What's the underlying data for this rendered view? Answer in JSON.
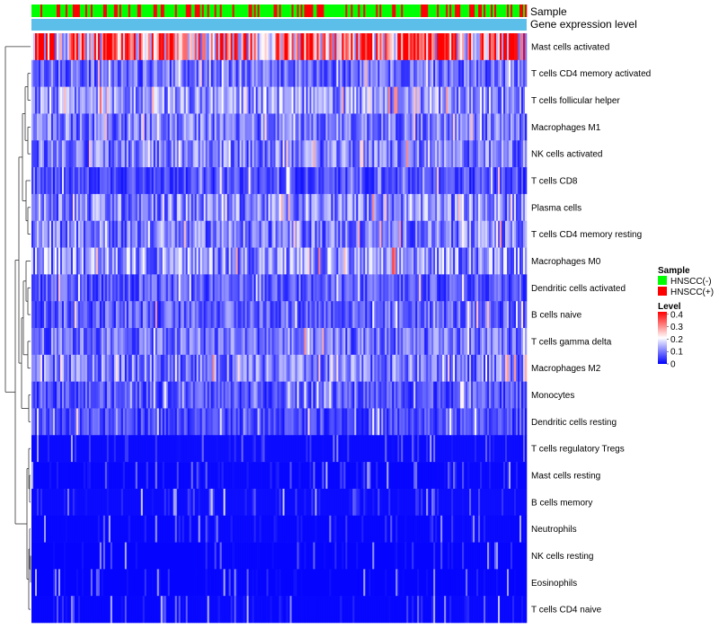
{
  "chart_data": {
    "type": "heatmap",
    "title": "",
    "annotation_rows": [
      "Sample",
      "Gene expression level"
    ],
    "rows": [
      "Mast cells activated",
      "T cells CD4 memory activated",
      "T cells follicular helper",
      "Macrophages M1",
      "NK cells activated",
      "T cells CD8",
      "Plasma cells",
      "T cells CD4 memory resting",
      "Macrophages M0",
      "Dendritic cells activated",
      "B cells naive",
      "T cells gamma delta",
      "Macrophages M2",
      "Monocytes",
      "Dendritic cells resting",
      "T cells regulatory  Tregs",
      "Mast cells resting",
      "B cells memory",
      "Neutrophils",
      "NK cells resting",
      "Eosinophils",
      "T cells CD4 naive"
    ],
    "row_mean_level": [
      0.3,
      0.09,
      0.12,
      0.1,
      0.1,
      0.06,
      0.11,
      0.1,
      0.12,
      0.07,
      0.08,
      0.09,
      0.1,
      0.07,
      0.06,
      0.03,
      0.02,
      0.03,
      0.02,
      0.01,
      0.01,
      0.02
    ],
    "n_samples": 276,
    "column_fraction_hnscc_pos": 0.28,
    "legend": {
      "sample": {
        "title": "Sample",
        "items": [
          {
            "label": "HNSCC(-)",
            "color": "#00ff00"
          },
          {
            "label": "HNSCC(+)",
            "color": "#ff0000"
          }
        ]
      },
      "level": {
        "title": "Level",
        "ticks": [
          "0.4",
          "0.3",
          "0.2",
          "0.1",
          "0"
        ],
        "tick_values": [
          0.4,
          0.3,
          0.2,
          0.1,
          0
        ],
        "range": [
          0,
          0.42
        ],
        "colors": [
          "#0000ff",
          "#ffffff",
          "#ff0000"
        ]
      }
    },
    "gene_expression_color": "#5bbfe9"
  }
}
